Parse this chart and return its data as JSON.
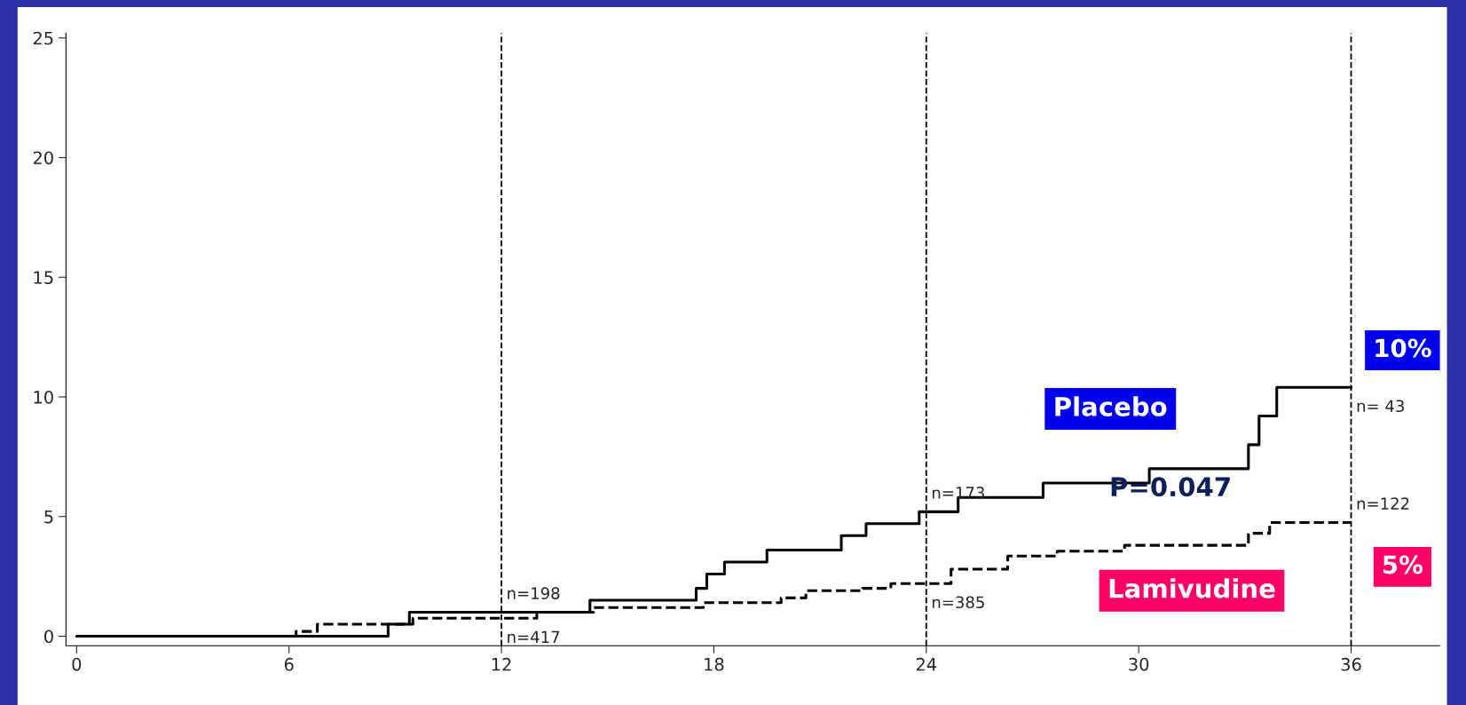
{
  "chart_data": {
    "type": "step",
    "series": [
      {
        "name": "Placebo",
        "color": "#000000",
        "line_style": "solid",
        "x": [
          0,
          8.8,
          9.4,
          14.5,
          17.5,
          17.8,
          18.3,
          19.5,
          21.6,
          22.3,
          23.8,
          24.9,
          27.3,
          30.3,
          33.1,
          33.4,
          33.9,
          36
        ],
        "values": [
          0,
          0.5,
          1.0,
          1.5,
          2.0,
          2.6,
          3.1,
          3.6,
          4.2,
          4.7,
          5.2,
          5.8,
          6.4,
          7.0,
          8.0,
          9.2,
          10.4,
          10.4
        ]
      },
      {
        "name": "Lamivudine",
        "color": "#000000",
        "line_style": "dashed",
        "x": [
          0,
          6.2,
          6.8,
          9.5,
          13.0,
          14.6,
          17.7,
          19.9,
          20.6,
          22.2,
          23.0,
          24.7,
          26.3,
          27.7,
          29.6,
          33.1,
          33.7,
          36
        ],
        "values": [
          0,
          0.2,
          0.5,
          0.75,
          1.0,
          1.2,
          1.4,
          1.6,
          1.9,
          2.0,
          2.2,
          2.8,
          3.35,
          3.55,
          3.8,
          4.3,
          4.75,
          4.75
        ]
      }
    ],
    "xlim": [
      -0.3,
      38.5
    ],
    "ylim": [
      -0.4,
      25.2
    ],
    "xticks": [
      0,
      6,
      12,
      18,
      24,
      30,
      36
    ],
    "yticks": [
      0,
      5,
      10,
      15,
      20,
      25
    ],
    "ref_lines": [
      {
        "axis": "x",
        "value": 12,
        "line_style": "dashed"
      },
      {
        "axis": "x",
        "value": 24,
        "line_style": "dashed"
      },
      {
        "axis": "x",
        "value": 36,
        "line_style": "dashed"
      }
    ],
    "annotations": [
      {
        "text": "n=198",
        "x": 12,
        "y": 1.0
      },
      {
        "text": "n=417",
        "x": 12,
        "y": 0.75
      },
      {
        "text": "n=173",
        "x": 24,
        "y": 5.2
      },
      {
        "text": "n=385",
        "x": 24,
        "y": 2.2
      },
      {
        "text": "n= 43",
        "x": 36,
        "y": 10.4
      },
      {
        "text": "n=122",
        "x": 36,
        "y": 4.75
      },
      {
        "text": "10%",
        "x": 36,
        "y": 10.4
      },
      {
        "text": "5%",
        "x": 36,
        "y": 4.75
      },
      "P=0.047"
    ],
    "grid": false,
    "legend": false
  }
}
